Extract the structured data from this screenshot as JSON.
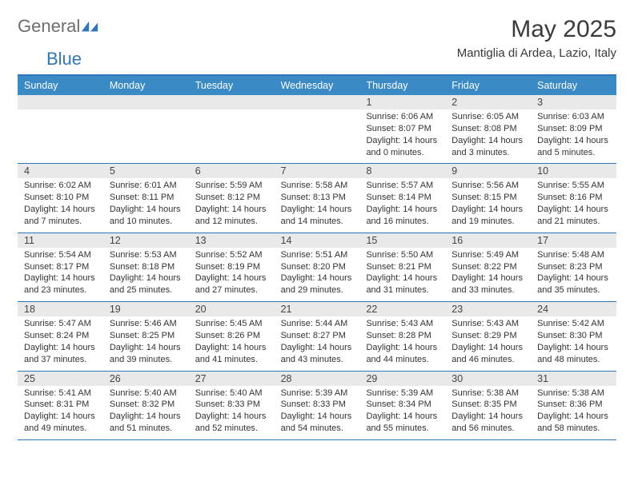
{
  "brand": {
    "part1": "General",
    "part2": "Blue"
  },
  "title": "May 2025",
  "location": "Mantiglia di Ardea, Lazio, Italy",
  "colors": {
    "accent": "#3a8ac6",
    "accentDark": "#2e77b8",
    "headerText": "#ffffff",
    "dateBarBg": "#e9e9e9",
    "bodyText": "#333333"
  },
  "weekdays": [
    "Sunday",
    "Monday",
    "Tuesday",
    "Wednesday",
    "Thursday",
    "Friday",
    "Saturday"
  ],
  "weeks": [
    {
      "dates": [
        "",
        "",
        "",
        "",
        "1",
        "2",
        "3"
      ],
      "cells": [
        null,
        null,
        null,
        null,
        {
          "sunrise": "Sunrise: 6:06 AM",
          "sunset": "Sunset: 8:07 PM",
          "day1": "Daylight: 14 hours",
          "day2": "and 0 minutes."
        },
        {
          "sunrise": "Sunrise: 6:05 AM",
          "sunset": "Sunset: 8:08 PM",
          "day1": "Daylight: 14 hours",
          "day2": "and 3 minutes."
        },
        {
          "sunrise": "Sunrise: 6:03 AM",
          "sunset": "Sunset: 8:09 PM",
          "day1": "Daylight: 14 hours",
          "day2": "and 5 minutes."
        }
      ]
    },
    {
      "dates": [
        "4",
        "5",
        "6",
        "7",
        "8",
        "9",
        "10"
      ],
      "cells": [
        {
          "sunrise": "Sunrise: 6:02 AM",
          "sunset": "Sunset: 8:10 PM",
          "day1": "Daylight: 14 hours",
          "day2": "and 7 minutes."
        },
        {
          "sunrise": "Sunrise: 6:01 AM",
          "sunset": "Sunset: 8:11 PM",
          "day1": "Daylight: 14 hours",
          "day2": "and 10 minutes."
        },
        {
          "sunrise": "Sunrise: 5:59 AM",
          "sunset": "Sunset: 8:12 PM",
          "day1": "Daylight: 14 hours",
          "day2": "and 12 minutes."
        },
        {
          "sunrise": "Sunrise: 5:58 AM",
          "sunset": "Sunset: 8:13 PM",
          "day1": "Daylight: 14 hours",
          "day2": "and 14 minutes."
        },
        {
          "sunrise": "Sunrise: 5:57 AM",
          "sunset": "Sunset: 8:14 PM",
          "day1": "Daylight: 14 hours",
          "day2": "and 16 minutes."
        },
        {
          "sunrise": "Sunrise: 5:56 AM",
          "sunset": "Sunset: 8:15 PM",
          "day1": "Daylight: 14 hours",
          "day2": "and 19 minutes."
        },
        {
          "sunrise": "Sunrise: 5:55 AM",
          "sunset": "Sunset: 8:16 PM",
          "day1": "Daylight: 14 hours",
          "day2": "and 21 minutes."
        }
      ]
    },
    {
      "dates": [
        "11",
        "12",
        "13",
        "14",
        "15",
        "16",
        "17"
      ],
      "cells": [
        {
          "sunrise": "Sunrise: 5:54 AM",
          "sunset": "Sunset: 8:17 PM",
          "day1": "Daylight: 14 hours",
          "day2": "and 23 minutes."
        },
        {
          "sunrise": "Sunrise: 5:53 AM",
          "sunset": "Sunset: 8:18 PM",
          "day1": "Daylight: 14 hours",
          "day2": "and 25 minutes."
        },
        {
          "sunrise": "Sunrise: 5:52 AM",
          "sunset": "Sunset: 8:19 PM",
          "day1": "Daylight: 14 hours",
          "day2": "and 27 minutes."
        },
        {
          "sunrise": "Sunrise: 5:51 AM",
          "sunset": "Sunset: 8:20 PM",
          "day1": "Daylight: 14 hours",
          "day2": "and 29 minutes."
        },
        {
          "sunrise": "Sunrise: 5:50 AM",
          "sunset": "Sunset: 8:21 PM",
          "day1": "Daylight: 14 hours",
          "day2": "and 31 minutes."
        },
        {
          "sunrise": "Sunrise: 5:49 AM",
          "sunset": "Sunset: 8:22 PM",
          "day1": "Daylight: 14 hours",
          "day2": "and 33 minutes."
        },
        {
          "sunrise": "Sunrise: 5:48 AM",
          "sunset": "Sunset: 8:23 PM",
          "day1": "Daylight: 14 hours",
          "day2": "and 35 minutes."
        }
      ]
    },
    {
      "dates": [
        "18",
        "19",
        "20",
        "21",
        "22",
        "23",
        "24"
      ],
      "cells": [
        {
          "sunrise": "Sunrise: 5:47 AM",
          "sunset": "Sunset: 8:24 PM",
          "day1": "Daylight: 14 hours",
          "day2": "and 37 minutes."
        },
        {
          "sunrise": "Sunrise: 5:46 AM",
          "sunset": "Sunset: 8:25 PM",
          "day1": "Daylight: 14 hours",
          "day2": "and 39 minutes."
        },
        {
          "sunrise": "Sunrise: 5:45 AM",
          "sunset": "Sunset: 8:26 PM",
          "day1": "Daylight: 14 hours",
          "day2": "and 41 minutes."
        },
        {
          "sunrise": "Sunrise: 5:44 AM",
          "sunset": "Sunset: 8:27 PM",
          "day1": "Daylight: 14 hours",
          "day2": "and 43 minutes."
        },
        {
          "sunrise": "Sunrise: 5:43 AM",
          "sunset": "Sunset: 8:28 PM",
          "day1": "Daylight: 14 hours",
          "day2": "and 44 minutes."
        },
        {
          "sunrise": "Sunrise: 5:43 AM",
          "sunset": "Sunset: 8:29 PM",
          "day1": "Daylight: 14 hours",
          "day2": "and 46 minutes."
        },
        {
          "sunrise": "Sunrise: 5:42 AM",
          "sunset": "Sunset: 8:30 PM",
          "day1": "Daylight: 14 hours",
          "day2": "and 48 minutes."
        }
      ]
    },
    {
      "dates": [
        "25",
        "26",
        "27",
        "28",
        "29",
        "30",
        "31"
      ],
      "cells": [
        {
          "sunrise": "Sunrise: 5:41 AM",
          "sunset": "Sunset: 8:31 PM",
          "day1": "Daylight: 14 hours",
          "day2": "and 49 minutes."
        },
        {
          "sunrise": "Sunrise: 5:40 AM",
          "sunset": "Sunset: 8:32 PM",
          "day1": "Daylight: 14 hours",
          "day2": "and 51 minutes."
        },
        {
          "sunrise": "Sunrise: 5:40 AM",
          "sunset": "Sunset: 8:33 PM",
          "day1": "Daylight: 14 hours",
          "day2": "and 52 minutes."
        },
        {
          "sunrise": "Sunrise: 5:39 AM",
          "sunset": "Sunset: 8:33 PM",
          "day1": "Daylight: 14 hours",
          "day2": "and 54 minutes."
        },
        {
          "sunrise": "Sunrise: 5:39 AM",
          "sunset": "Sunset: 8:34 PM",
          "day1": "Daylight: 14 hours",
          "day2": "and 55 minutes."
        },
        {
          "sunrise": "Sunrise: 5:38 AM",
          "sunset": "Sunset: 8:35 PM",
          "day1": "Daylight: 14 hours",
          "day2": "and 56 minutes."
        },
        {
          "sunrise": "Sunrise: 5:38 AM",
          "sunset": "Sunset: 8:36 PM",
          "day1": "Daylight: 14 hours",
          "day2": "and 58 minutes."
        }
      ]
    }
  ]
}
